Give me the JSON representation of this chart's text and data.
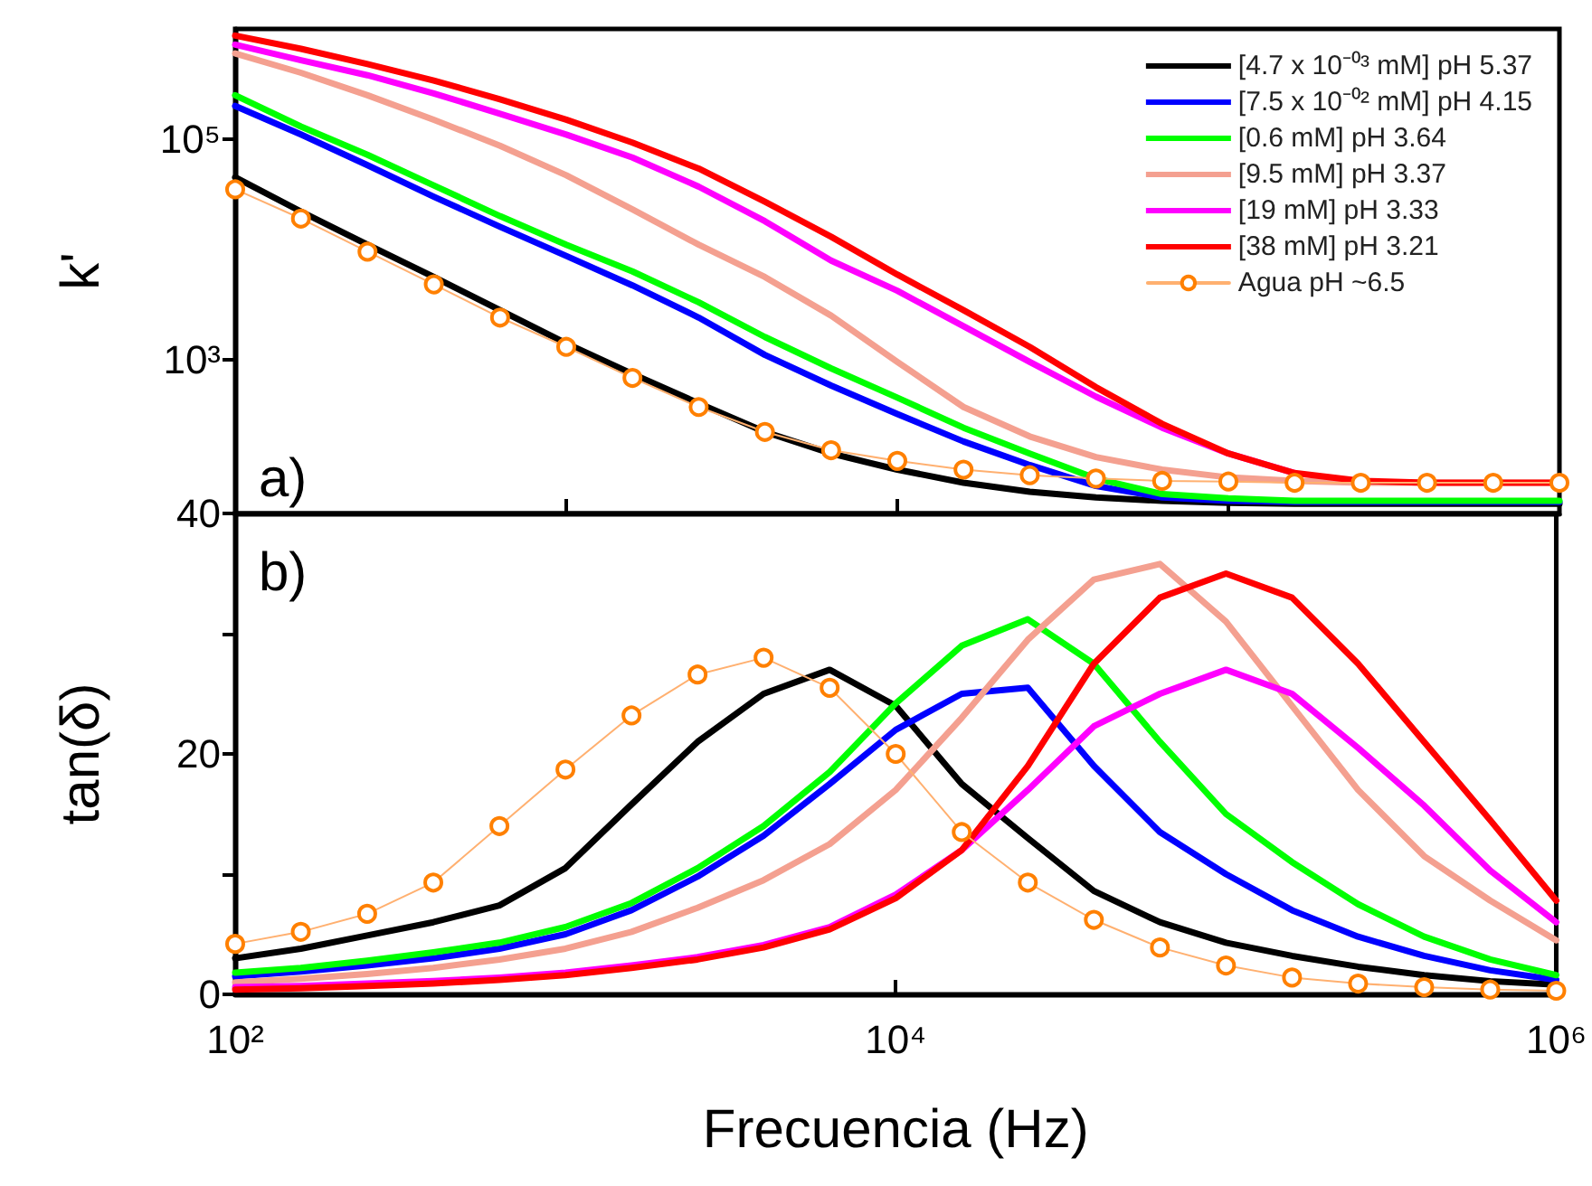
{
  "chart_data": [
    {
      "type": "line",
      "ylabel": "k'",
      "log": "xy",
      "xlim": [
        100,
        1000000
      ],
      "ylim": [
        40,
        1000000
      ],
      "yticks": [
        {
          "value": 1000,
          "label": "10³"
        },
        {
          "value": 100000,
          "label": "10⁵"
        }
      ],
      "tick_labels": "y",
      "grid": false,
      "legend": "top right",
      "annotations": [
        "a)"
      ],
      "x": [
        100,
        158,
        251,
        398,
        631,
        1000,
        1585,
        2512,
        3981,
        6310,
        10000,
        15849,
        25119,
        39811,
        63096,
        100000,
        158489,
        251189,
        398107,
        630957,
        1000000
      ],
      "series": [
        {
          "name": "[4.7 x 10⁻⁰³ mM] pH 5.37",
          "color": "#000000",
          "marker": "none",
          "values": [
            45000,
            22000,
            11000,
            5600,
            2800,
            1400,
            740,
            400,
            220,
            140,
            100,
            76,
            63,
            56,
            52,
            50,
            49,
            49,
            49,
            49,
            49
          ]
        },
        {
          "name": "[7.5 x 10⁻⁰² mM] pH 4.15",
          "color": "#0000ff",
          "marker": "none",
          "values": [
            200000,
            110000,
            58000,
            30000,
            16000,
            8700,
            4700,
            2400,
            1100,
            580,
            320,
            180,
            110,
            71,
            56,
            52,
            51,
            51,
            51,
            51,
            51
          ]
        },
        {
          "name": "[0.6 mM] pH 3.64",
          "color": "#00ff00",
          "marker": "none",
          "values": [
            250000,
            130000,
            72000,
            38000,
            20000,
            11000,
            6300,
            3300,
            1600,
            830,
            450,
            240,
            140,
            83,
            60,
            55,
            52,
            52,
            52,
            52,
            52
          ]
        },
        {
          "name": "[9.5 mM] pH 3.37",
          "color": "#f4a090",
          "marker": "none",
          "values": [
            600000,
            400000,
            250000,
            150000,
            87000,
            47000,
            23000,
            11000,
            5600,
            2500,
            950,
            370,
            200,
            130,
            100,
            85,
            79,
            76,
            76,
            76,
            76
          ]
        },
        {
          "name": "[19 mM] pH 3.33",
          "color": "#ff00ff",
          "marker": "none",
          "values": [
            720000,
            520000,
            380000,
            260000,
            170000,
            110000,
            68000,
            37000,
            18000,
            7900,
            4200,
            2000,
            950,
            460,
            240,
            140,
            93,
            null,
            null,
            null,
            null
          ]
        },
        {
          "name": "[38 mM] pH 3.21",
          "color": "#ff0000",
          "marker": "none",
          "values": [
            870000,
            660000,
            480000,
            340000,
            230000,
            150000,
            93000,
            54000,
            27000,
            13000,
            5900,
            2800,
            1300,
            560,
            260,
            140,
            93,
            79,
            76,
            76,
            76
          ]
        },
        {
          "name": "Agua pH ~6.5",
          "color": "#ff8000",
          "marker": "circle",
          "values": [
            35000,
            19000,
            9500,
            4800,
            2400,
            1300,
            680,
            370,
            220,
            150,
            120,
            100,
            89,
            83,
            79,
            78,
            76,
            76,
            76,
            76,
            76
          ]
        }
      ]
    },
    {
      "type": "line",
      "ylabel": "tan(δ)",
      "xlabel": "Frecuencia (Hz)",
      "log": "x",
      "xlim": [
        100,
        1000000
      ],
      "ylim": [
        0,
        40
      ],
      "xticks": [
        {
          "value": 100,
          "label": "10²"
        },
        {
          "value": 10000,
          "label": "10⁴"
        },
        {
          "value": 1000000,
          "label": "10⁶"
        }
      ],
      "yticks": [
        0,
        {
          "value": 10,
          "label": null
        },
        20,
        {
          "value": 30,
          "label": null
        },
        40
      ],
      "grid": false,
      "annotations": [
        "b)"
      ],
      "x": [
        100,
        158,
        251,
        398,
        631,
        1000,
        1585,
        2512,
        3981,
        6310,
        10000,
        15849,
        25119,
        39811,
        63096,
        100000,
        158489,
        251189,
        398107,
        630957,
        1000000
      ],
      "series": [
        {
          "color": "#000000",
          "marker": "none",
          "values": [
            3.0,
            3.8,
            4.9,
            6.0,
            7.4,
            10.5,
            15.8,
            21,
            25,
            27,
            24,
            17.5,
            13,
            8.6,
            6,
            4.3,
            3.2,
            2.3,
            1.6,
            1.1,
            0.8
          ]
        },
        {
          "color": "#0000ff",
          "marker": "none",
          "values": [
            1.5,
            1.9,
            2.4,
            3.0,
            3.8,
            5.0,
            7.0,
            9.8,
            13.2,
            17.5,
            22,
            25,
            25.5,
            19,
            13.5,
            10,
            7,
            4.8,
            3.2,
            2,
            1.2
          ]
        },
        {
          "color": "#00ff00",
          "marker": "none",
          "values": [
            1.8,
            2.2,
            2.8,
            3.5,
            4.3,
            5.6,
            7.6,
            10.5,
            14,
            18.5,
            24.2,
            29,
            31.2,
            27.5,
            21,
            15,
            11,
            7.5,
            4.8,
            2.9,
            1.6
          ]
        },
        {
          "color": "#f4a090",
          "marker": "none",
          "values": [
            1.0,
            1.3,
            1.7,
            2.2,
            2.9,
            3.8,
            5.2,
            7.2,
            9.5,
            12.5,
            17,
            23,
            29.5,
            34.5,
            35.8,
            31,
            24,
            17,
            11.5,
            7.8,
            4.5
          ]
        },
        {
          "color": "#ff00ff",
          "marker": "none",
          "values": [
            0.6,
            0.7,
            0.9,
            1.1,
            1.4,
            1.8,
            2.4,
            3.1,
            4.1,
            5.6,
            8.3,
            12,
            17,
            22.3,
            25,
            27,
            25,
            20.5,
            15.7,
            10.3,
            6.0
          ]
        },
        {
          "color": "#ff0000",
          "marker": "none",
          "values": [
            0.4,
            0.5,
            0.7,
            0.9,
            1.2,
            1.6,
            2.2,
            2.9,
            3.9,
            5.4,
            8,
            12,
            19,
            27.5,
            33,
            35,
            33,
            27.5,
            21,
            14.5,
            7.8
          ]
        },
        {
          "color": "#ff8000",
          "marker": "circle",
          "values": [
            4.2,
            5.2,
            6.7,
            9.3,
            14,
            18.7,
            23.2,
            26.6,
            28,
            25.5,
            20,
            13.5,
            9.3,
            6.2,
            3.9,
            2.4,
            1.4,
            0.9,
            0.6,
            0.4,
            0.3
          ]
        }
      ]
    }
  ]
}
